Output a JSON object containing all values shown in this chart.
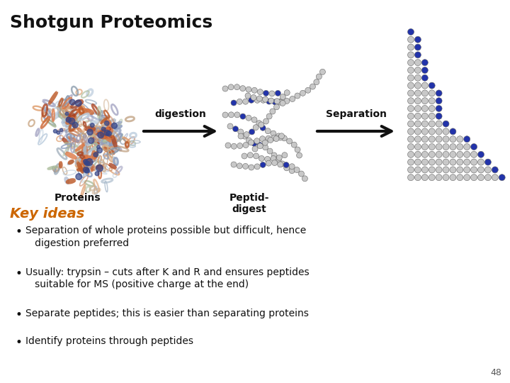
{
  "title": "Shotgun Proteomics",
  "title_fontsize": 18,
  "title_fontweight": "bold",
  "background_color": "#ffffff",
  "key_ideas_label": "Key ideas",
  "key_ideas_color": "#cc6600",
  "key_ideas_fontsize": 14,
  "key_ideas_fontstyle": "italic",
  "key_ideas_fontweight": "bold",
  "bullet_points": [
    "Separation of whole proteins possible but difficult, hence\n   digestion preferred",
    "Usually: trypsin – cuts after K and R and ensures peptides\n   suitable for MS (positive charge at the end)",
    "Separate peptides; this is easier than separating proteins",
    "Identify proteins through peptides"
  ],
  "bullet_fontsize": 10,
  "label_proteins": "Proteins",
  "label_digestion": "digestion",
  "label_peptid": "Peptid-\ndigest",
  "label_separation": "Separation",
  "page_number": "48",
  "bead_gray": "#c8c8c8",
  "bead_blue": "#2233aa",
  "bead_edge": "#666666",
  "sep_row_lengths": [
    1,
    2,
    2,
    2,
    3,
    3,
    3,
    4,
    5,
    5,
    5,
    5,
    6,
    7,
    9,
    10,
    11,
    12,
    13,
    14
  ]
}
